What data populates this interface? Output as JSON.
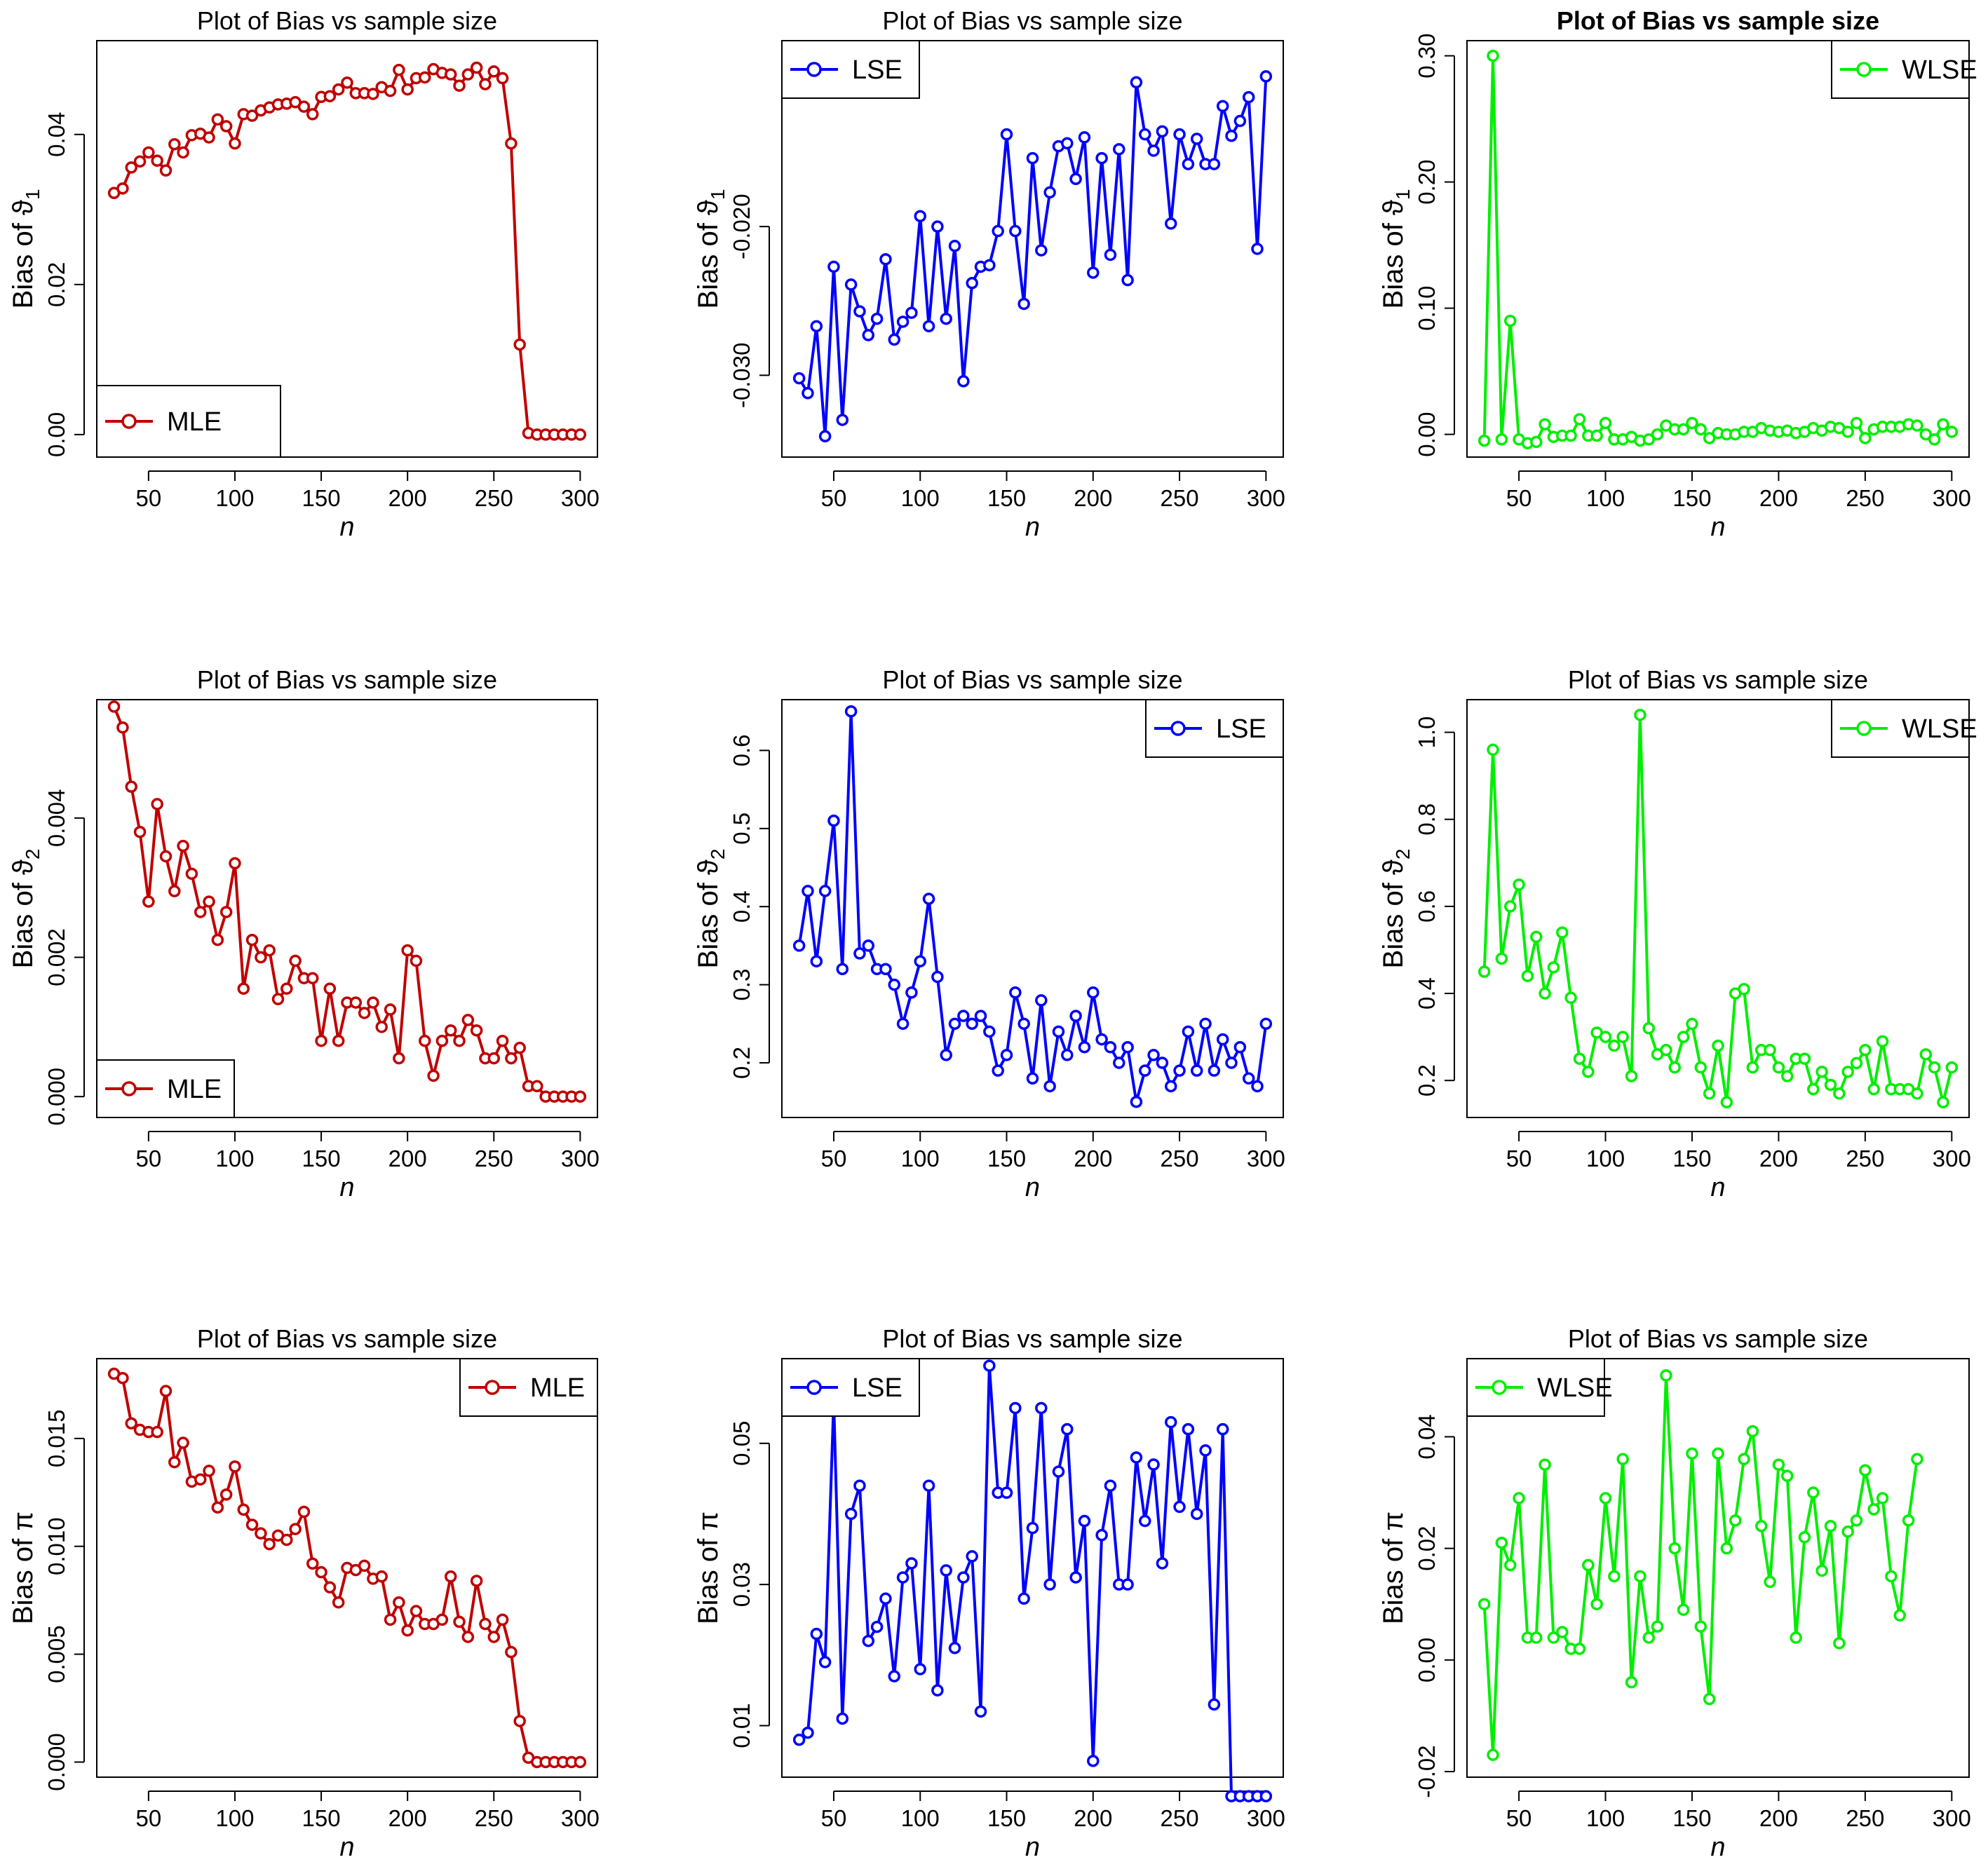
{
  "chart_data": [
    {
      "id": "p11",
      "type": "line",
      "title": "Plot of Bias vs sample size",
      "title_bold": false,
      "xlabel": "n",
      "ylabel": "Bias of ϑ",
      "ylabel_sub": "1",
      "xlim": [
        20,
        310
      ],
      "ylim": [
        -0.003,
        0.0525
      ],
      "xticks": [
        50,
        100,
        150,
        200,
        250,
        300
      ],
      "xtick_labels": [
        "50",
        "100",
        "150",
        "200",
        "250",
        "300"
      ],
      "yticks": [
        0,
        0.02,
        0.04
      ],
      "ytick_labels": [
        "0.00",
        "0.02",
        "0.04"
      ],
      "color": "#C00000",
      "legend": "MLE",
      "legend_position": "bottom-left",
      "legend_size": "large",
      "x_start": 30,
      "x_step": 5,
      "values": [
        0.0322,
        0.0328,
        0.0356,
        0.0364,
        0.0376,
        0.0365,
        0.0352,
        0.0387,
        0.0376,
        0.0399,
        0.0401,
        0.0396,
        0.042,
        0.0411,
        0.0388,
        0.0427,
        0.0425,
        0.0432,
        0.0436,
        0.044,
        0.0441,
        0.0443,
        0.0437,
        0.0427,
        0.045,
        0.0451,
        0.046,
        0.0469,
        0.0455,
        0.0455,
        0.0454,
        0.0463,
        0.0458,
        0.0486,
        0.046,
        0.0475,
        0.0476,
        0.0487,
        0.0482,
        0.048,
        0.0465,
        0.048,
        0.0489,
        0.0467,
        0.0484,
        0.0475,
        0.0388,
        0.012,
        0.0002,
        0.0,
        0.0,
        0.0,
        0.0,
        0.0,
        0.0
      ]
    },
    {
      "id": "p12",
      "type": "line",
      "title": "Plot of Bias vs sample size",
      "title_bold": false,
      "xlabel": "n",
      "ylabel": "Bias of ϑ",
      "ylabel_sub": "1",
      "xlim": [
        20,
        310
      ],
      "ylim": [
        -0.0355,
        -0.0075
      ],
      "xticks": [
        50,
        100,
        150,
        200,
        250,
        300
      ],
      "xtick_labels": [
        "50",
        "100",
        "150",
        "200",
        "250",
        "300"
      ],
      "yticks": [
        -0.03,
        -0.02
      ],
      "ytick_labels": [
        "-0.030",
        "-0.020"
      ],
      "color": "#0000FF",
      "legend": "LSE",
      "legend_position": "top-left",
      "legend_size": "normal",
      "x_start": 30,
      "x_step": 5,
      "values": [
        -0.0302,
        -0.0312,
        -0.0267,
        -0.0341,
        -0.0227,
        -0.033,
        -0.0239,
        -0.0257,
        -0.0273,
        -0.0262,
        -0.0222,
        -0.0276,
        -0.0264,
        -0.0258,
        -0.0193,
        -0.0267,
        -0.02,
        -0.0262,
        -0.0213,
        -0.0304,
        -0.0238,
        -0.0227,
        -0.0226,
        -0.0203,
        -0.0138,
        -0.0203,
        -0.0252,
        -0.0154,
        -0.0216,
        -0.0177,
        -0.0146,
        -0.0144,
        -0.0168,
        -0.014,
        -0.0231,
        -0.0154,
        -0.0219,
        -0.0148,
        -0.0236,
        -0.0103,
        -0.0138,
        -0.0149,
        -0.0136,
        -0.0198,
        -0.0138,
        -0.0158,
        -0.0141,
        -0.0158,
        -0.0158,
        -0.0119,
        -0.0139,
        -0.0129,
        -0.0113,
        -0.0215,
        -0.0099
      ]
    },
    {
      "id": "p13",
      "type": "line",
      "title": "Plot of Bias vs sample size",
      "title_bold": true,
      "xlabel": "n",
      "ylabel": "Bias of ϑ",
      "ylabel_sub": "1",
      "xlim": [
        20,
        310
      ],
      "ylim": [
        -0.018,
        0.312
      ],
      "xticks": [
        50,
        100,
        150,
        200,
        250,
        300
      ],
      "xtick_labels": [
        "50",
        "100",
        "150",
        "200",
        "250",
        "300"
      ],
      "yticks": [
        0,
        0.1,
        0.2,
        0.3
      ],
      "ytick_labels": [
        "0.00",
        "0.10",
        "0.20",
        "0.30"
      ],
      "color": "#00EE00",
      "legend": "WLSE",
      "legend_position": "top-right",
      "legend_size": "normal",
      "x_start": 30,
      "x_step": 5,
      "values": [
        -0.005,
        0.3,
        -0.004,
        0.09,
        -0.004,
        -0.007,
        -0.006,
        0.008,
        -0.002,
        -0.001,
        -0.001,
        0.012,
        -0.001,
        -0.001,
        0.009,
        -0.004,
        -0.004,
        -0.002,
        -0.005,
        -0.004,
        0.0,
        0.007,
        0.004,
        0.004,
        0.009,
        0.004,
        -0.003,
        0.001,
        0.0,
        0.0,
        0.002,
        0.002,
        0.005,
        0.003,
        0.002,
        0.003,
        0.001,
        0.002,
        0.005,
        0.003,
        0.006,
        0.005,
        0.002,
        0.009,
        -0.003,
        0.004,
        0.006,
        0.006,
        0.006,
        0.008,
        0.007,
        0.0,
        -0.004,
        0.008,
        0.002
      ]
    },
    {
      "id": "p21",
      "type": "line",
      "title": "Plot of Bias vs sample size",
      "title_bold": false,
      "xlabel": "n",
      "ylabel": "Bias of ϑ",
      "ylabel_sub": "2",
      "xlim": [
        20,
        310
      ],
      "ylim": [
        -0.0003,
        0.0057
      ],
      "xticks": [
        50,
        100,
        150,
        200,
        250,
        300
      ],
      "xtick_labels": [
        "50",
        "100",
        "150",
        "200",
        "250",
        "300"
      ],
      "yticks": [
        0,
        0.002,
        0.004
      ],
      "ytick_labels": [
        "0.000",
        "0.002",
        "0.004"
      ],
      "color": "#C00000",
      "legend": "MLE",
      "legend_position": "bottom-left",
      "legend_size": "normal",
      "x_start": 30,
      "x_step": 5,
      "values": [
        0.0056,
        0.0053,
        0.00445,
        0.0038,
        0.0028,
        0.0042,
        0.00345,
        0.00295,
        0.0036,
        0.0032,
        0.00265,
        0.0028,
        0.00225,
        0.00265,
        0.00335,
        0.00155,
        0.00225,
        0.002,
        0.0021,
        0.0014,
        0.00155,
        0.00195,
        0.0017,
        0.0017,
        0.0008,
        0.00155,
        0.0008,
        0.00135,
        0.00135,
        0.0012,
        0.00135,
        0.001,
        0.00125,
        0.00055,
        0.0021,
        0.00195,
        0.0008,
        0.0003,
        0.0008,
        0.00095,
        0.0008,
        0.0011,
        0.00095,
        0.00055,
        0.00055,
        0.0008,
        0.00055,
        0.0007,
        0.00015,
        0.00015,
        0.0,
        0.0,
        0.0,
        0.0,
        0.0
      ]
    },
    {
      "id": "p22",
      "type": "line",
      "title": "Plot of Bias vs sample size",
      "title_bold": false,
      "xlabel": "n",
      "ylabel": "Bias of ϑ",
      "ylabel_sub": "2",
      "xlim": [
        20,
        310
      ],
      "ylim": [
        0.13,
        0.665
      ],
      "xticks": [
        50,
        100,
        150,
        200,
        250,
        300
      ],
      "xtick_labels": [
        "50",
        "100",
        "150",
        "200",
        "250",
        "300"
      ],
      "yticks": [
        0.2,
        0.3,
        0.4,
        0.5,
        0.6
      ],
      "ytick_labels": [
        "0.2",
        "0.3",
        "0.4",
        "0.5",
        "0.6"
      ],
      "color": "#0000FF",
      "legend": "LSE",
      "legend_position": "top-right",
      "legend_size": "normal",
      "x_start": 30,
      "x_step": 5,
      "values": [
        0.35,
        0.42,
        0.33,
        0.42,
        0.51,
        0.32,
        0.65,
        0.34,
        0.35,
        0.32,
        0.32,
        0.3,
        0.25,
        0.29,
        0.33,
        0.41,
        0.31,
        0.21,
        0.25,
        0.26,
        0.25,
        0.26,
        0.24,
        0.19,
        0.21,
        0.29,
        0.25,
        0.18,
        0.28,
        0.17,
        0.24,
        0.21,
        0.26,
        0.22,
        0.29,
        0.23,
        0.22,
        0.2,
        0.22,
        0.15,
        0.19,
        0.21,
        0.2,
        0.17,
        0.19,
        0.24,
        0.19,
        0.25,
        0.19,
        0.23,
        0.2,
        0.22,
        0.18,
        0.17,
        0.25
      ]
    },
    {
      "id": "p23",
      "type": "line",
      "title": "Plot of Bias vs sample size",
      "title_bold": false,
      "xlabel": "n",
      "ylabel": "Bias of ϑ",
      "ylabel_sub": "2",
      "xlim": [
        20,
        310
      ],
      "ylim": [
        0.115,
        1.075
      ],
      "xticks": [
        50,
        100,
        150,
        200,
        250,
        300
      ],
      "xtick_labels": [
        "50",
        "100",
        "150",
        "200",
        "250",
        "300"
      ],
      "yticks": [
        0.2,
        0.4,
        0.6,
        0.8,
        1.0
      ],
      "ytick_labels": [
        "0.2",
        "0.4",
        "0.6",
        "0.8",
        "1.0"
      ],
      "color": "#00EE00",
      "legend": "WLSE",
      "legend_position": "top-right",
      "legend_size": "normal",
      "x_start": 30,
      "x_step": 5,
      "values": [
        0.45,
        0.96,
        0.48,
        0.6,
        0.65,
        0.44,
        0.53,
        0.4,
        0.46,
        0.54,
        0.39,
        0.25,
        0.22,
        0.31,
        0.3,
        0.28,
        0.3,
        0.21,
        1.04,
        0.32,
        0.26,
        0.27,
        0.23,
        0.3,
        0.33,
        0.23,
        0.17,
        0.28,
        0.15,
        0.4,
        0.41,
        0.23,
        0.27,
        0.27,
        0.23,
        0.21,
        0.25,
        0.25,
        0.18,
        0.22,
        0.19,
        0.17,
        0.22,
        0.24,
        0.27,
        0.18,
        0.29,
        0.18,
        0.18,
        0.18,
        0.17,
        0.26,
        0.23,
        0.15,
        0.23
      ]
    },
    {
      "id": "p31",
      "type": "line",
      "title": "Plot of Bias vs sample size",
      "title_bold": false,
      "xlabel": "n",
      "ylabel": "Bias of π",
      "ylabel_sub": "",
      "xlim": [
        20,
        310
      ],
      "ylim": [
        -0.0007,
        0.0187
      ],
      "xticks": [
        50,
        100,
        150,
        200,
        250,
        300
      ],
      "xtick_labels": [
        "50",
        "100",
        "150",
        "200",
        "250",
        "300"
      ],
      "yticks": [
        0,
        0.005,
        0.01,
        0.015
      ],
      "ytick_labels": [
        "0.000",
        "0.005",
        "0.010",
        "0.015"
      ],
      "color": "#C00000",
      "legend": "MLE",
      "legend_position": "top-right",
      "legend_size": "normal",
      "x_start": 30,
      "x_step": 5,
      "values": [
        0.018,
        0.0178,
        0.0157,
        0.0154,
        0.0153,
        0.0153,
        0.0172,
        0.0139,
        0.0148,
        0.013,
        0.0131,
        0.0135,
        0.0118,
        0.0124,
        0.0137,
        0.0117,
        0.011,
        0.0106,
        0.0101,
        0.0105,
        0.0103,
        0.0108,
        0.0116,
        0.0092,
        0.0088,
        0.0081,
        0.0074,
        0.009,
        0.0089,
        0.0091,
        0.0085,
        0.0086,
        0.0066,
        0.0074,
        0.0061,
        0.007,
        0.0064,
        0.0064,
        0.0066,
        0.0086,
        0.0065,
        0.0058,
        0.0084,
        0.0064,
        0.0058,
        0.0066,
        0.0051,
        0.0019,
        0.0002,
        0.0,
        0.0,
        0.0,
        0.0,
        0.0,
        0.0
      ]
    },
    {
      "id": "p32",
      "type": "line",
      "title": "Plot of Bias vs sample size",
      "title_bold": false,
      "xlabel": "n",
      "ylabel": "Bias of π",
      "ylabel_sub": "",
      "xlim": [
        20,
        310
      ],
      "ylim": [
        0.0027,
        0.062
      ],
      "xticks": [
        50,
        100,
        150,
        200,
        250,
        300
      ],
      "xtick_labels": [
        "50",
        "100",
        "150",
        "200",
        "250",
        "300"
      ],
      "yticks": [
        0.01,
        0.03,
        0.05
      ],
      "ytick_labels": [
        "0.01",
        "0.03",
        "0.05"
      ],
      "color": "#0000FF",
      "legend": "LSE",
      "legend_position": "top-left",
      "legend_size": "normal",
      "x_start": 30,
      "x_step": 5,
      "values": [
        0.008,
        0.009,
        0.023,
        0.019,
        0.056,
        0.011,
        0.04,
        0.044,
        0.022,
        0.024,
        0.028,
        0.017,
        0.031,
        0.033,
        0.018,
        0.044,
        0.015,
        0.032,
        0.021,
        0.031,
        0.034,
        0.012,
        0.061,
        0.043,
        0.043,
        0.055,
        0.028,
        0.038,
        0.055,
        0.03,
        0.046,
        0.052,
        0.031,
        0.039,
        0.005,
        0.037,
        0.044,
        0.03,
        0.03,
        0.048,
        0.039,
        0.047,
        0.033,
        0.053,
        0.041,
        0.052,
        0.04,
        0.049,
        0.013,
        0.052,
        0.0,
        0.0,
        0.0,
        0.0,
        0.0
      ]
    },
    {
      "id": "p33",
      "type": "line",
      "title": "Plot of Bias vs sample size",
      "title_bold": false,
      "xlabel": "n",
      "ylabel": "Bias of π",
      "ylabel_sub": "",
      "xlim": [
        20,
        310
      ],
      "ylim": [
        -0.021,
        0.054
      ],
      "xticks": [
        50,
        100,
        150,
        200,
        250,
        300
      ],
      "xtick_labels": [
        "50",
        "100",
        "150",
        "200",
        "250",
        "300"
      ],
      "yticks": [
        -0.02,
        0,
        0.02,
        0.04
      ],
      "ytick_labels": [
        "-0.02",
        "0.00",
        "0.02",
        "0.04"
      ],
      "color": "#00EE00",
      "legend": "WLSE",
      "legend_position": "top-left",
      "legend_size": "normal",
      "x_start": 30,
      "x_step": 5,
      "values": [
        0.01,
        -0.017,
        0.021,
        0.017,
        0.029,
        0.004,
        0.004,
        0.035,
        0.004,
        0.005,
        0.002,
        0.002,
        0.017,
        0.01,
        0.029,
        0.015,
        0.036,
        -0.004,
        0.015,
        0.004,
        0.006,
        0.051,
        0.02,
        0.009,
        0.037,
        0.006,
        -0.007,
        0.037,
        0.02,
        0.025,
        0.036,
        0.041,
        0.024,
        0.014,
        0.035,
        0.033,
        0.004,
        0.022,
        0.03,
        0.016,
        0.024,
        0.003,
        0.023,
        0.025,
        0.034,
        0.027,
        0.029,
        0.015,
        0.008,
        0.025,
        0.036
      ]
    }
  ]
}
